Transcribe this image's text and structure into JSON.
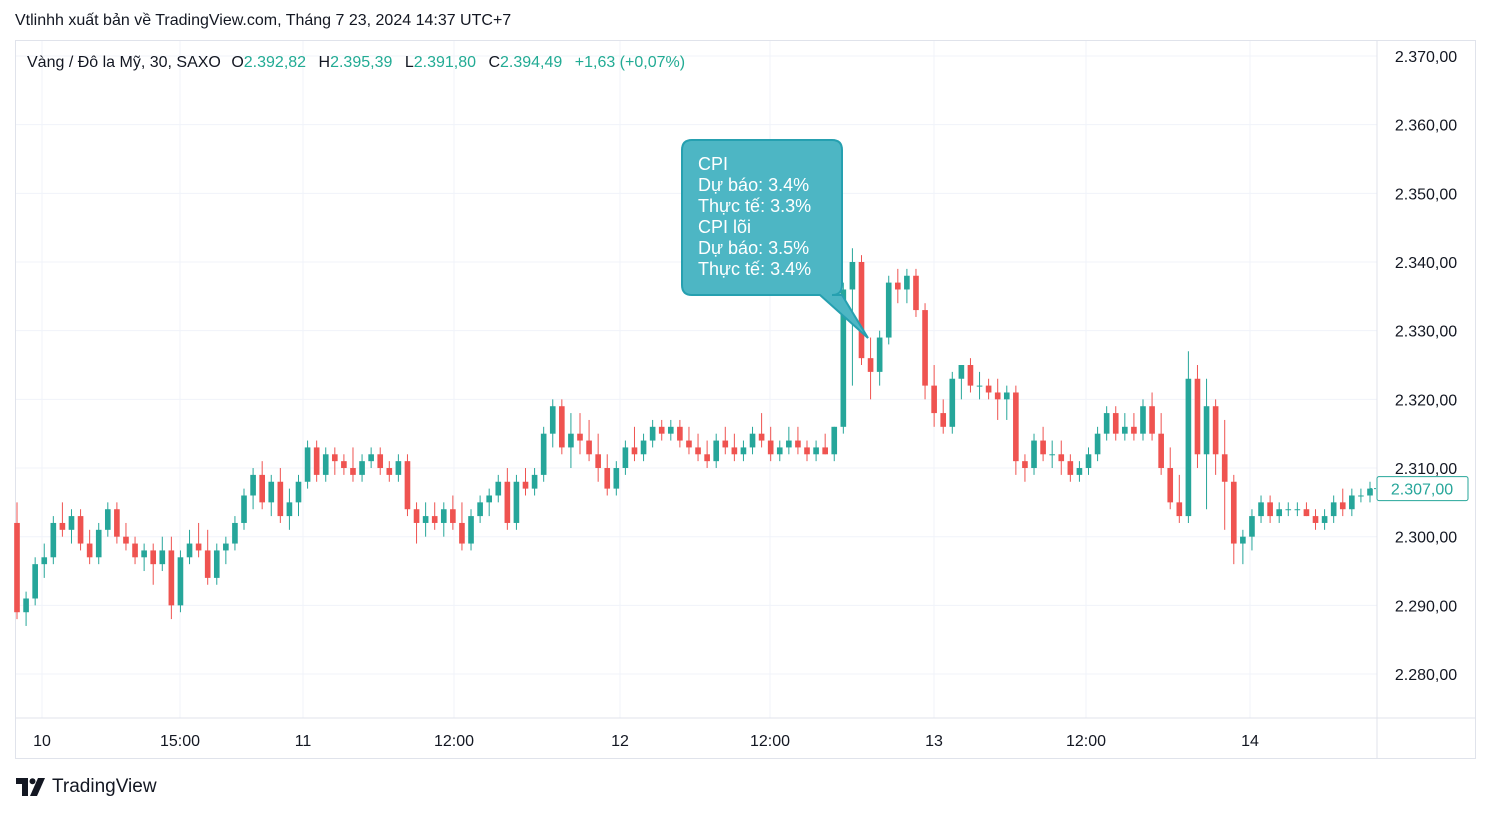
{
  "header": {
    "published": "Vtlinhh xuất bản về TradingView.com, Tháng 7 23, 2024 14:37 UTC+7"
  },
  "legend": {
    "symbol": "Vàng / Đô la Mỹ, 30, SAXO",
    "open_label": "O",
    "open": "2.392,82",
    "high_label": "H",
    "high": "2.395,39",
    "low_label": "L",
    "low": "2.391,80",
    "close_label": "C",
    "close": "2.394,49",
    "change": "+1,63 (+0,07%)"
  },
  "callout": {
    "lines": [
      "CPI",
      "Dự báo: 3.4%",
      "Thực tế: 3.3%",
      "CPI lõi",
      "Dự báo: 3.5%",
      "Thực tế: 3.4%"
    ]
  },
  "footer": {
    "brand": "TradingView"
  },
  "colors": {
    "up": "#26a69a",
    "down": "#ef5350",
    "grid": "#f0f3fa",
    "callout": "#4db6c4",
    "callout_border": "#26a0b0"
  },
  "chart_data": {
    "type": "candlestick",
    "y_ticks": [
      "2.370,00",
      "2.360,00",
      "2.350,00",
      "2.340,00",
      "2.330,00",
      "2.320,00",
      "2.310,00",
      "2.300,00",
      "2.290,00",
      "2.280,00"
    ],
    "y_tick_values": [
      2370,
      2360,
      2350,
      2340,
      2330,
      2320,
      2310,
      2300,
      2290,
      2280
    ],
    "ylim": [
      2274,
      2372
    ],
    "x_ticks": [
      "10",
      "15:00",
      "11",
      "12:00",
      "12",
      "12:00",
      "13",
      "12:00",
      "14"
    ],
    "last_price": 2307.0,
    "last_price_label": "2.307,00",
    "candles": [
      [
        2302,
        2305,
        2288,
        2289
      ],
      [
        2289,
        2292,
        2287,
        2291
      ],
      [
        2291,
        2297,
        2290,
        2296
      ],
      [
        2296,
        2299,
        2294,
        2297
      ],
      [
        2297,
        2303,
        2296,
        2302
      ],
      [
        2302,
        2305,
        2300,
        2301
      ],
      [
        2301,
        2304,
        2299,
        2303
      ],
      [
        2303,
        2304,
        2298,
        2299
      ],
      [
        2299,
        2301,
        2296,
        2297
      ],
      [
        2297,
        2302,
        2296,
        2301
      ],
      [
        2301,
        2305,
        2300,
        2304
      ],
      [
        2304,
        2305,
        2299,
        2300
      ],
      [
        2300,
        2302,
        2298,
        2299
      ],
      [
        2299,
        2300,
        2296,
        2297
      ],
      [
        2297,
        2299,
        2295,
        2298
      ],
      [
        2298,
        2299,
        2293,
        2296
      ],
      [
        2296,
        2300,
        2295,
        2298
      ],
      [
        2298,
        2300,
        2288,
        2290
      ],
      [
        2290,
        2298,
        2289,
        2297
      ],
      [
        2297,
        2301,
        2296,
        2299
      ],
      [
        2299,
        2302,
        2297,
        2298
      ],
      [
        2298,
        2301,
        2293,
        2294
      ],
      [
        2294,
        2299,
        2293,
        2298
      ],
      [
        2298,
        2300,
        2296,
        2299
      ],
      [
        2299,
        2303,
        2298,
        2302
      ],
      [
        2302,
        2307,
        2301,
        2306
      ],
      [
        2306,
        2310,
        2304,
        2309
      ],
      [
        2309,
        2311,
        2304,
        2305
      ],
      [
        2305,
        2309,
        2303,
        2308
      ],
      [
        2308,
        2310,
        2302,
        2303
      ],
      [
        2303,
        2307,
        2301,
        2305
      ],
      [
        2305,
        2309,
        2303,
        2308
      ],
      [
        2308,
        2314,
        2307,
        2313
      ],
      [
        2313,
        2314,
        2308,
        2309
      ],
      [
        2309,
        2313,
        2308,
        2312
      ],
      [
        2312,
        2313,
        2309,
        2311
      ],
      [
        2311,
        2312,
        2309,
        2310
      ],
      [
        2310,
        2313,
        2308,
        2309
      ],
      [
        2309,
        2312,
        2308,
        2311
      ],
      [
        2311,
        2313,
        2310,
        2312
      ],
      [
        2312,
        2313,
        2309,
        2310
      ],
      [
        2310,
        2311,
        2308,
        2309
      ],
      [
        2309,
        2312,
        2308,
        2311
      ],
      [
        2311,
        2312,
        2303,
        2304
      ],
      [
        2304,
        2305,
        2299,
        2302
      ],
      [
        2302,
        2305,
        2300,
        2303
      ],
      [
        2303,
        2305,
        2301,
        2302
      ],
      [
        2302,
        2305,
        2300,
        2304
      ],
      [
        2304,
        2306,
        2301,
        2302
      ],
      [
        2302,
        2305,
        2298,
        2299
      ],
      [
        2299,
        2304,
        2298,
        2303
      ],
      [
        2303,
        2306,
        2302,
        2305
      ],
      [
        2305,
        2307,
        2303,
        2306
      ],
      [
        2306,
        2309,
        2305,
        2308
      ],
      [
        2308,
        2310,
        2301,
        2302
      ],
      [
        2302,
        2309,
        2301,
        2308
      ],
      [
        2308,
        2310,
        2306,
        2307
      ],
      [
        2307,
        2310,
        2306,
        2309
      ],
      [
        2309,
        2316,
        2308,
        2315
      ],
      [
        2315,
        2320,
        2313,
        2319
      ],
      [
        2319,
        2320,
        2312,
        2313
      ],
      [
        2313,
        2318,
        2310,
        2315
      ],
      [
        2315,
        2318,
        2312,
        2314
      ],
      [
        2314,
        2317,
        2311,
        2312
      ],
      [
        2312,
        2315,
        2308,
        2310
      ],
      [
        2310,
        2312,
        2306,
        2307
      ],
      [
        2307,
        2311,
        2306,
        2310
      ],
      [
        2310,
        2314,
        2309,
        2313
      ],
      [
        2313,
        2316,
        2311,
        2312
      ],
      [
        2312,
        2315,
        2311,
        2314
      ],
      [
        2314,
        2317,
        2313,
        2316
      ],
      [
        2316,
        2317,
        2314,
        2315
      ],
      [
        2315,
        2317,
        2314,
        2316
      ],
      [
        2316,
        2317,
        2313,
        2314
      ],
      [
        2314,
        2316,
        2312,
        2313
      ],
      [
        2313,
        2315,
        2311,
        2312
      ],
      [
        2312,
        2314,
        2310,
        2311
      ],
      [
        2311,
        2315,
        2310,
        2314
      ],
      [
        2314,
        2316,
        2312,
        2313
      ],
      [
        2313,
        2315,
        2311,
        2312
      ],
      [
        2312,
        2314,
        2311,
        2313
      ],
      [
        2313,
        2316,
        2312,
        2315
      ],
      [
        2315,
        2318,
        2313,
        2314
      ],
      [
        2314,
        2316,
        2311,
        2312
      ],
      [
        2312,
        2314,
        2311,
        2313
      ],
      [
        2313,
        2316,
        2312,
        2314
      ],
      [
        2314,
        2316,
        2312,
        2313
      ],
      [
        2313,
        2314,
        2311,
        2312
      ],
      [
        2312,
        2314,
        2311,
        2313
      ],
      [
        2313,
        2315,
        2312,
        2312
      ],
      [
        2312,
        2316,
        2311,
        2316
      ],
      [
        2316,
        2337,
        2315,
        2336
      ],
      [
        2336,
        2342,
        2322,
        2340
      ],
      [
        2340,
        2341,
        2325,
        2326
      ],
      [
        2326,
        2329,
        2320,
        2324
      ],
      [
        2324,
        2330,
        2322,
        2329
      ],
      [
        2329,
        2338,
        2328,
        2337
      ],
      [
        2337,
        2339,
        2334,
        2336
      ],
      [
        2336,
        2339,
        2334,
        2338
      ],
      [
        2338,
        2339,
        2332,
        2333
      ],
      [
        2333,
        2334,
        2320,
        2322
      ],
      [
        2322,
        2325,
        2316,
        2318
      ],
      [
        2318,
        2320,
        2315,
        2316
      ],
      [
        2316,
        2324,
        2315,
        2323
      ],
      [
        2323,
        2325,
        2320,
        2325
      ],
      [
        2325,
        2326,
        2321,
        2322
      ],
      [
        2322,
        2324,
        2320,
        2322
      ],
      [
        2322,
        2323,
        2320,
        2321
      ],
      [
        2321,
        2323,
        2317,
        2320
      ],
      [
        2320,
        2322,
        2317,
        2321
      ],
      [
        2321,
        2322,
        2309,
        2311
      ],
      [
        2311,
        2312,
        2308,
        2310
      ],
      [
        2310,
        2315,
        2309,
        2314
      ],
      [
        2314,
        2316,
        2311,
        2312
      ],
      [
        2312,
        2314,
        2310,
        2312
      ],
      [
        2312,
        2314,
        2309,
        2311
      ],
      [
        2311,
        2312,
        2308,
        2309
      ],
      [
        2309,
        2311,
        2308,
        2310
      ],
      [
        2310,
        2313,
        2309,
        2312
      ],
      [
        2312,
        2316,
        2311,
        2315
      ],
      [
        2315,
        2319,
        2314,
        2318
      ],
      [
        2318,
        2319,
        2314,
        2315
      ],
      [
        2315,
        2318,
        2314,
        2316
      ],
      [
        2316,
        2318,
        2314,
        2315
      ],
      [
        2315,
        2320,
        2314,
        2319
      ],
      [
        2319,
        2321,
        2314,
        2315
      ],
      [
        2315,
        2318,
        2309,
        2310
      ],
      [
        2310,
        2313,
        2304,
        2305
      ],
      [
        2305,
        2309,
        2302,
        2303
      ],
      [
        2303,
        2327,
        2302,
        2323
      ],
      [
        2323,
        2325,
        2310,
        2312
      ],
      [
        2312,
        2323,
        2304,
        2319
      ],
      [
        2319,
        2320,
        2309,
        2312
      ],
      [
        2312,
        2317,
        2301,
        2308
      ],
      [
        2308,
        2309,
        2296,
        2299
      ],
      [
        2299,
        2301,
        2296,
        2300
      ],
      [
        2300,
        2304,
        2298,
        2303
      ],
      [
        2303,
        2306,
        2302,
        2305
      ],
      [
        2305,
        2306,
        2302,
        2303
      ],
      [
        2303,
        2305,
        2302,
        2304
      ],
      [
        2304,
        2305,
        2303,
        2304
      ],
      [
        2304,
        2305,
        2303,
        2304
      ],
      [
        2304,
        2305,
        2303,
        2303
      ],
      [
        2303,
        2304,
        2301,
        2302
      ],
      [
        2302,
        2304,
        2301,
        2303
      ],
      [
        2303,
        2306,
        2302,
        2305
      ],
      [
        2305,
        2307,
        2303,
        2304
      ],
      [
        2304,
        2307,
        2303,
        2306
      ],
      [
        2306,
        2307,
        2305,
        2306
      ],
      [
        2306,
        2308,
        2305,
        2307
      ]
    ]
  }
}
